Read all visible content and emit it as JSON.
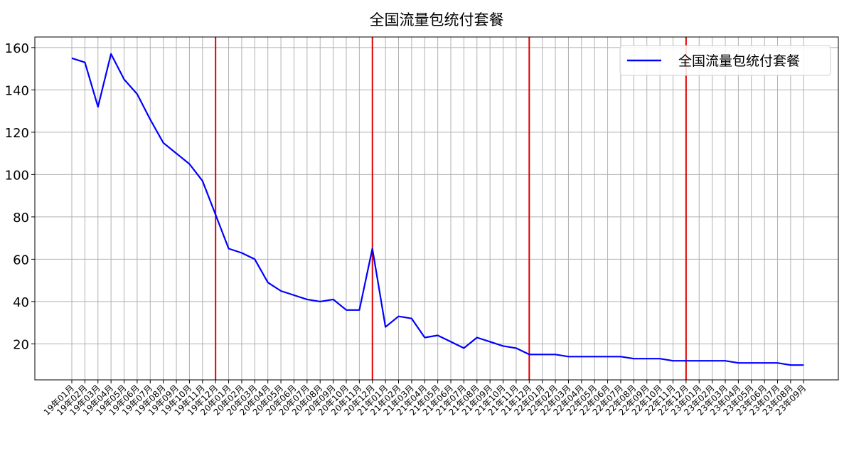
{
  "chart_data": {
    "type": "line",
    "title": "全国流量包统付套餐",
    "xlabel": "",
    "ylabel": "",
    "ylim": [
      3,
      165
    ],
    "yticks": [
      20,
      40,
      60,
      80,
      100,
      120,
      140,
      160
    ],
    "grid": true,
    "legend": {
      "placement": "top-right",
      "entries": [
        "全国流量包统付套餐"
      ]
    },
    "colors": {
      "series": "#0000ff",
      "vlines": "#e00000",
      "grid": "#b0b0b0",
      "axis": "#000000"
    },
    "x": [
      "19年01月",
      "19年02月",
      "19年03月",
      "19年04月",
      "19年05月",
      "19年06月",
      "19年07月",
      "19年08月",
      "19年09月",
      "19年10月",
      "19年11月",
      "19年12月",
      "20年01月",
      "20年02月",
      "20年03月",
      "20年04月",
      "20年05月",
      "20年06月",
      "20年07月",
      "20年08月",
      "20年09月",
      "20年10月",
      "20年11月",
      "20年12月",
      "21年01月",
      "21年02月",
      "21年03月",
      "21年04月",
      "21年05月",
      "21年06月",
      "21年07月",
      "21年08月",
      "21年09月",
      "21年10月",
      "21年11月",
      "21年12月",
      "22年01月",
      "22年02月",
      "22年03月",
      "22年04月",
      "22年05月",
      "22年06月",
      "22年07月",
      "22年08月",
      "22年09月",
      "22年10月",
      "22年11月",
      "22年12月",
      "23年01月",
      "23年02月",
      "23年03月",
      "23年04月",
      "23年05月",
      "23年06月",
      "23年07月",
      "23年08月",
      "23年09月"
    ],
    "series": [
      {
        "name": "全国流量包统付套餐",
        "values": [
          155,
          153,
          132,
          157,
          145,
          138,
          126,
          115,
          110,
          105,
          97,
          81,
          65,
          63,
          60,
          49,
          45,
          43,
          41,
          40,
          41,
          36,
          36,
          65,
          28,
          33,
          32,
          23,
          24,
          21,
          18,
          23,
          21,
          19,
          18,
          15,
          15,
          15,
          14,
          14,
          14,
          14,
          14,
          13,
          13,
          13,
          12,
          12,
          12,
          12,
          12,
          11,
          11,
          11,
          11,
          10,
          10
        ]
      }
    ],
    "vertical_lines_at": [
      "19年12月",
      "20年12月",
      "21年12月",
      "22年12月"
    ]
  }
}
